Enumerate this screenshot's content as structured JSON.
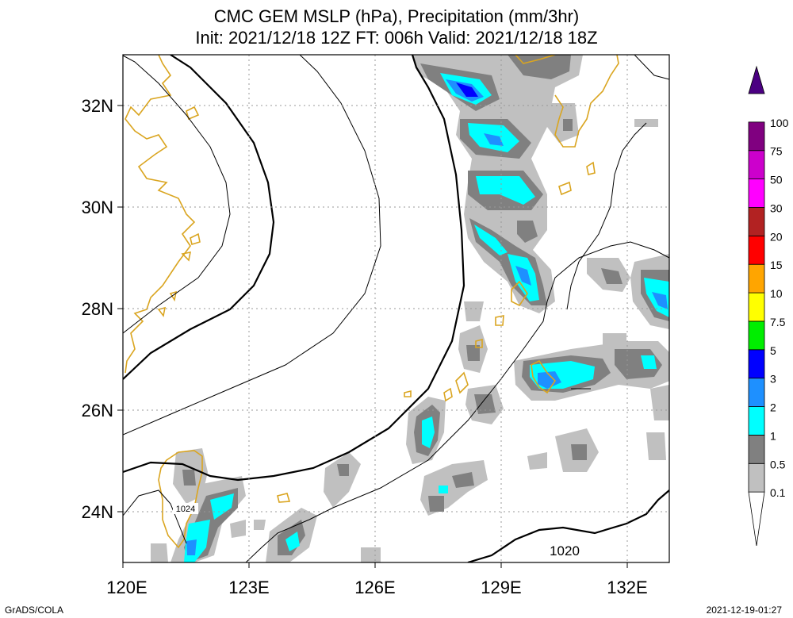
{
  "title": {
    "line1": "CMC GEM MSLP (hPa), Precipitation (mm/3hr)",
    "line2": "Init: 2021/12/18 12Z  FT: 006h  Valid: 2021/12/18 18Z"
  },
  "axes": {
    "x_ticks": [
      "120E",
      "123E",
      "126E",
      "129E",
      "132E"
    ],
    "y_ticks": [
      "32N",
      "30N",
      "28N",
      "26N",
      "24N"
    ],
    "lon_range": [
      120,
      133
    ],
    "lat_range": [
      23,
      33
    ]
  },
  "contour_labels": [
    "1024",
    "1020"
  ],
  "colorbar": {
    "labels": [
      "0.1",
      "0.5",
      "1",
      "2",
      "3",
      "5",
      "7.5",
      "10",
      "15",
      "20",
      "30",
      "50",
      "75",
      "100"
    ],
    "colors": [
      "#ffffff",
      "#c0c0c0",
      "#808080",
      "#00ffff",
      "#1e90ff",
      "#0000ff",
      "#00ee00",
      "#ffff00",
      "#ffa500",
      "#ff0000",
      "#b22222",
      "#ff00ff",
      "#cc00cc",
      "#800080",
      "#4b0082"
    ]
  },
  "footer": {
    "left": "GrADS/COLA",
    "right": "2021-12-19-01:27"
  },
  "colors": {
    "coastline": "#daa520",
    "grid": "#999999",
    "isobar": "#000000"
  }
}
